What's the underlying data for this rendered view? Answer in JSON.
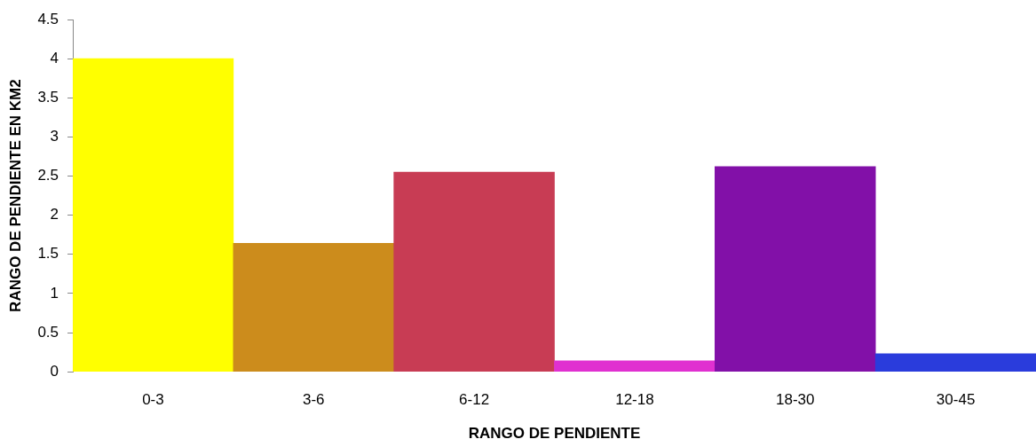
{
  "chart_data": {
    "type": "bar",
    "xlabel": "RANGO DE PENDIENTE",
    "ylabel": "RANGO DE PENDIENTE EN KM2",
    "categories": [
      "0-3",
      "3-6",
      "6-12",
      "12-18",
      "18-30",
      "30-45"
    ],
    "values": [
      4.0,
      1.64,
      2.55,
      0.14,
      2.62,
      0.23
    ],
    "colors": [
      "#ffff00",
      "#cc8c1c",
      "#c83c54",
      "#e030d0",
      "#8210a8",
      "#2a3cdc"
    ],
    "ylim": [
      0,
      4.5
    ],
    "yticks": [
      0,
      0.5,
      1,
      1.5,
      2,
      2.5,
      3,
      3.5,
      4,
      4.5
    ],
    "grid": false,
    "legend": false
  }
}
